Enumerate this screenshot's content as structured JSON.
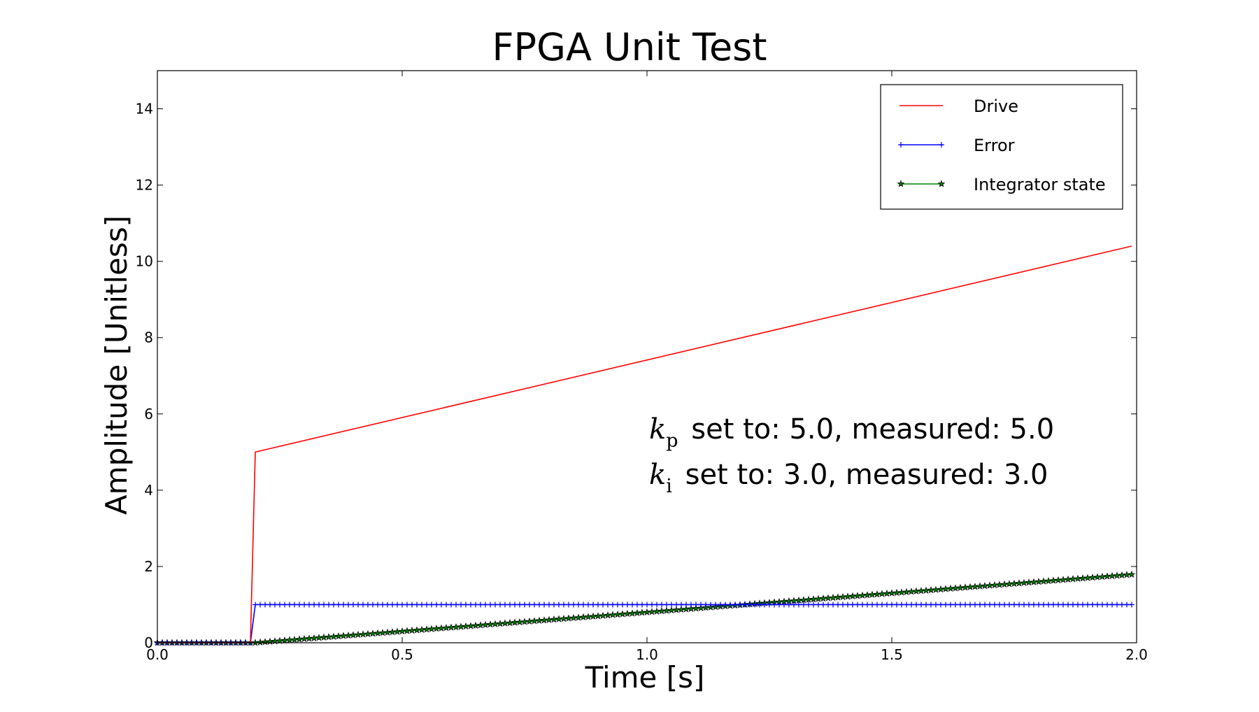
{
  "chart_data": {
    "type": "line",
    "title": "FPGA Unit Test",
    "xlabel": "Time [s]",
    "ylabel": "Amplitude [Unitless]",
    "xlim": [
      0.0,
      2.0
    ],
    "ylim": [
      0,
      15
    ],
    "xticks": [
      0.0,
      0.5,
      1.0,
      1.5,
      2.0
    ],
    "xtick_labels": [
      "0.0",
      "0.5",
      "1.0",
      "1.5",
      "2.0"
    ],
    "yticks": [
      0,
      2,
      4,
      6,
      8,
      10,
      12,
      14
    ],
    "ytick_labels": [
      "0",
      "2",
      "4",
      "6",
      "8",
      "10",
      "12",
      "14"
    ],
    "grid": false,
    "legend_position": "top-right",
    "series": [
      {
        "name": "Drive",
        "color": "#ff0000",
        "marker": "none",
        "x": [
          0.0,
          0.19,
          0.2,
          1.99
        ],
        "y": [
          0.0,
          0.0,
          5.0,
          10.4
        ]
      },
      {
        "name": "Error",
        "color": "#0000ff",
        "marker": "plus",
        "x_start": 0.0,
        "x_end": 1.99,
        "x_step": 0.01,
        "step_time": 0.2,
        "y_before": 0.0,
        "y_after": 1.0
      },
      {
        "name": "Integrator state",
        "color": "#008000",
        "marker": "star",
        "x_start": 0.0,
        "x_end": 1.99,
        "x_step": 0.01,
        "ramp_start": 0.2,
        "ramp_slope": 1.0
      }
    ],
    "annotations": [
      {
        "symbol": "k",
        "subscript": "p",
        "text": " set to: 5.0, measured: 5.0"
      },
      {
        "symbol": "k",
        "subscript": "i",
        "text": " set to: 3.0, measured: 3.0"
      }
    ]
  }
}
